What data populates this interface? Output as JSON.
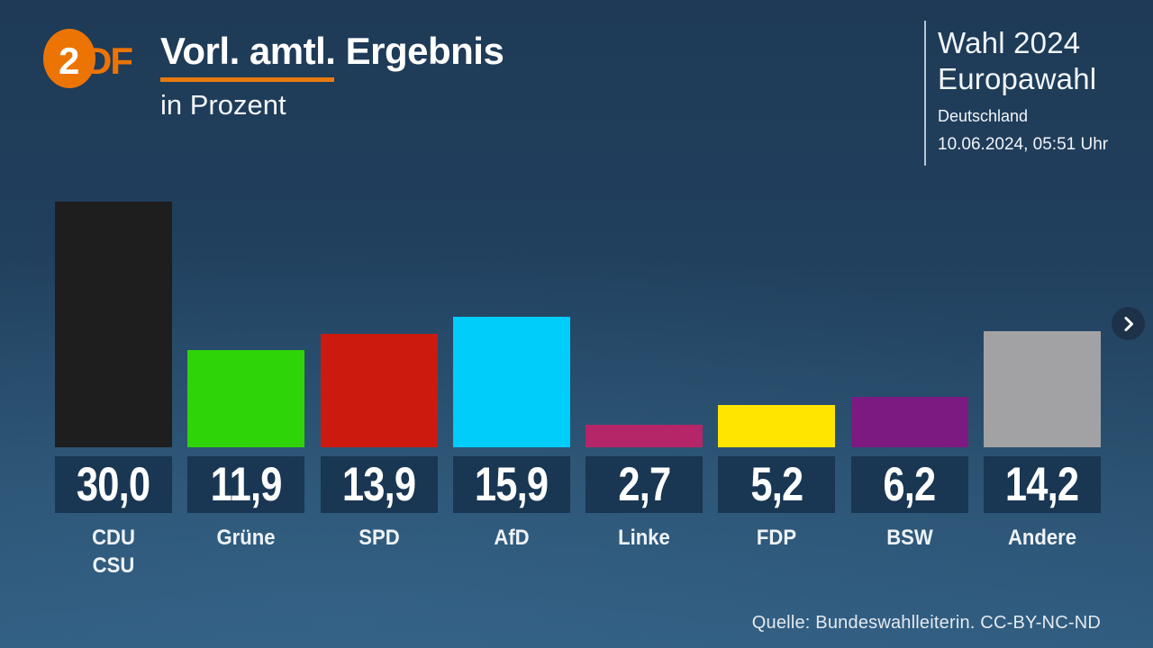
{
  "header": {
    "logo": {
      "part_circle": "2",
      "part_letters": "DF"
    },
    "title": "Vorl. amtl. Ergebnis",
    "subtitle": "in Prozent"
  },
  "info_panel": {
    "line1": "Wahl 2024",
    "line2": "Europawahl",
    "region": "Deutschland",
    "timestamp": "10.06.2024, 05:51 Uhr"
  },
  "chart_data": {
    "type": "bar",
    "title": "Vorl. amtl. Ergebnis",
    "unit": "Prozent",
    "categories": [
      "CDU/CSU",
      "Grüne",
      "SPD",
      "AfD",
      "Linke",
      "FDP",
      "BSW",
      "Andere"
    ],
    "values": [
      30.0,
      11.9,
      13.9,
      15.9,
      2.7,
      5.2,
      6.2,
      14.2
    ],
    "value_labels": [
      "30,0",
      "11,9",
      "13,9",
      "15,9",
      "2,7",
      "5,2",
      "6,2",
      "14,2"
    ],
    "ylim": [
      0,
      30
    ],
    "grid": false,
    "legend": "none",
    "bars": [
      {
        "party_lines": [
          "CDU",
          "CSU"
        ],
        "value": 30.0,
        "label": "30,0",
        "color": "#1e1e1e"
      },
      {
        "party_lines": [
          "Grüne"
        ],
        "value": 11.9,
        "label": "11,9",
        "color": "#2ed407"
      },
      {
        "party_lines": [
          "SPD"
        ],
        "value": 13.9,
        "label": "13,9",
        "color": "#cc1a0e"
      },
      {
        "party_lines": [
          "AfD"
        ],
        "value": 15.9,
        "label": "15,9",
        "color": "#00cdfa"
      },
      {
        "party_lines": [
          "Linke"
        ],
        "value": 2.7,
        "label": "2,7",
        "color": "#b42667"
      },
      {
        "party_lines": [
          "FDP"
        ],
        "value": 5.2,
        "label": "5,2",
        "color": "#ffe500"
      },
      {
        "party_lines": [
          "BSW"
        ],
        "value": 6.2,
        "label": "6,2",
        "color": "#7d1a81"
      },
      {
        "party_lines": [
          "Andere"
        ],
        "value": 14.2,
        "label": "14,2",
        "color": "#a2a2a4"
      }
    ]
  },
  "nav": {
    "next_icon": "chevron-right"
  },
  "source": "Quelle: Bundeswahlleiterin. CC-BY-NC-ND",
  "colors": {
    "accent_orange": "#e8790f",
    "zdf_orange": "#ec7404",
    "value_box_bg": "#193653",
    "background_top": "#1e3a56",
    "background_bottom": "#305c80",
    "text": "#ffffff"
  }
}
